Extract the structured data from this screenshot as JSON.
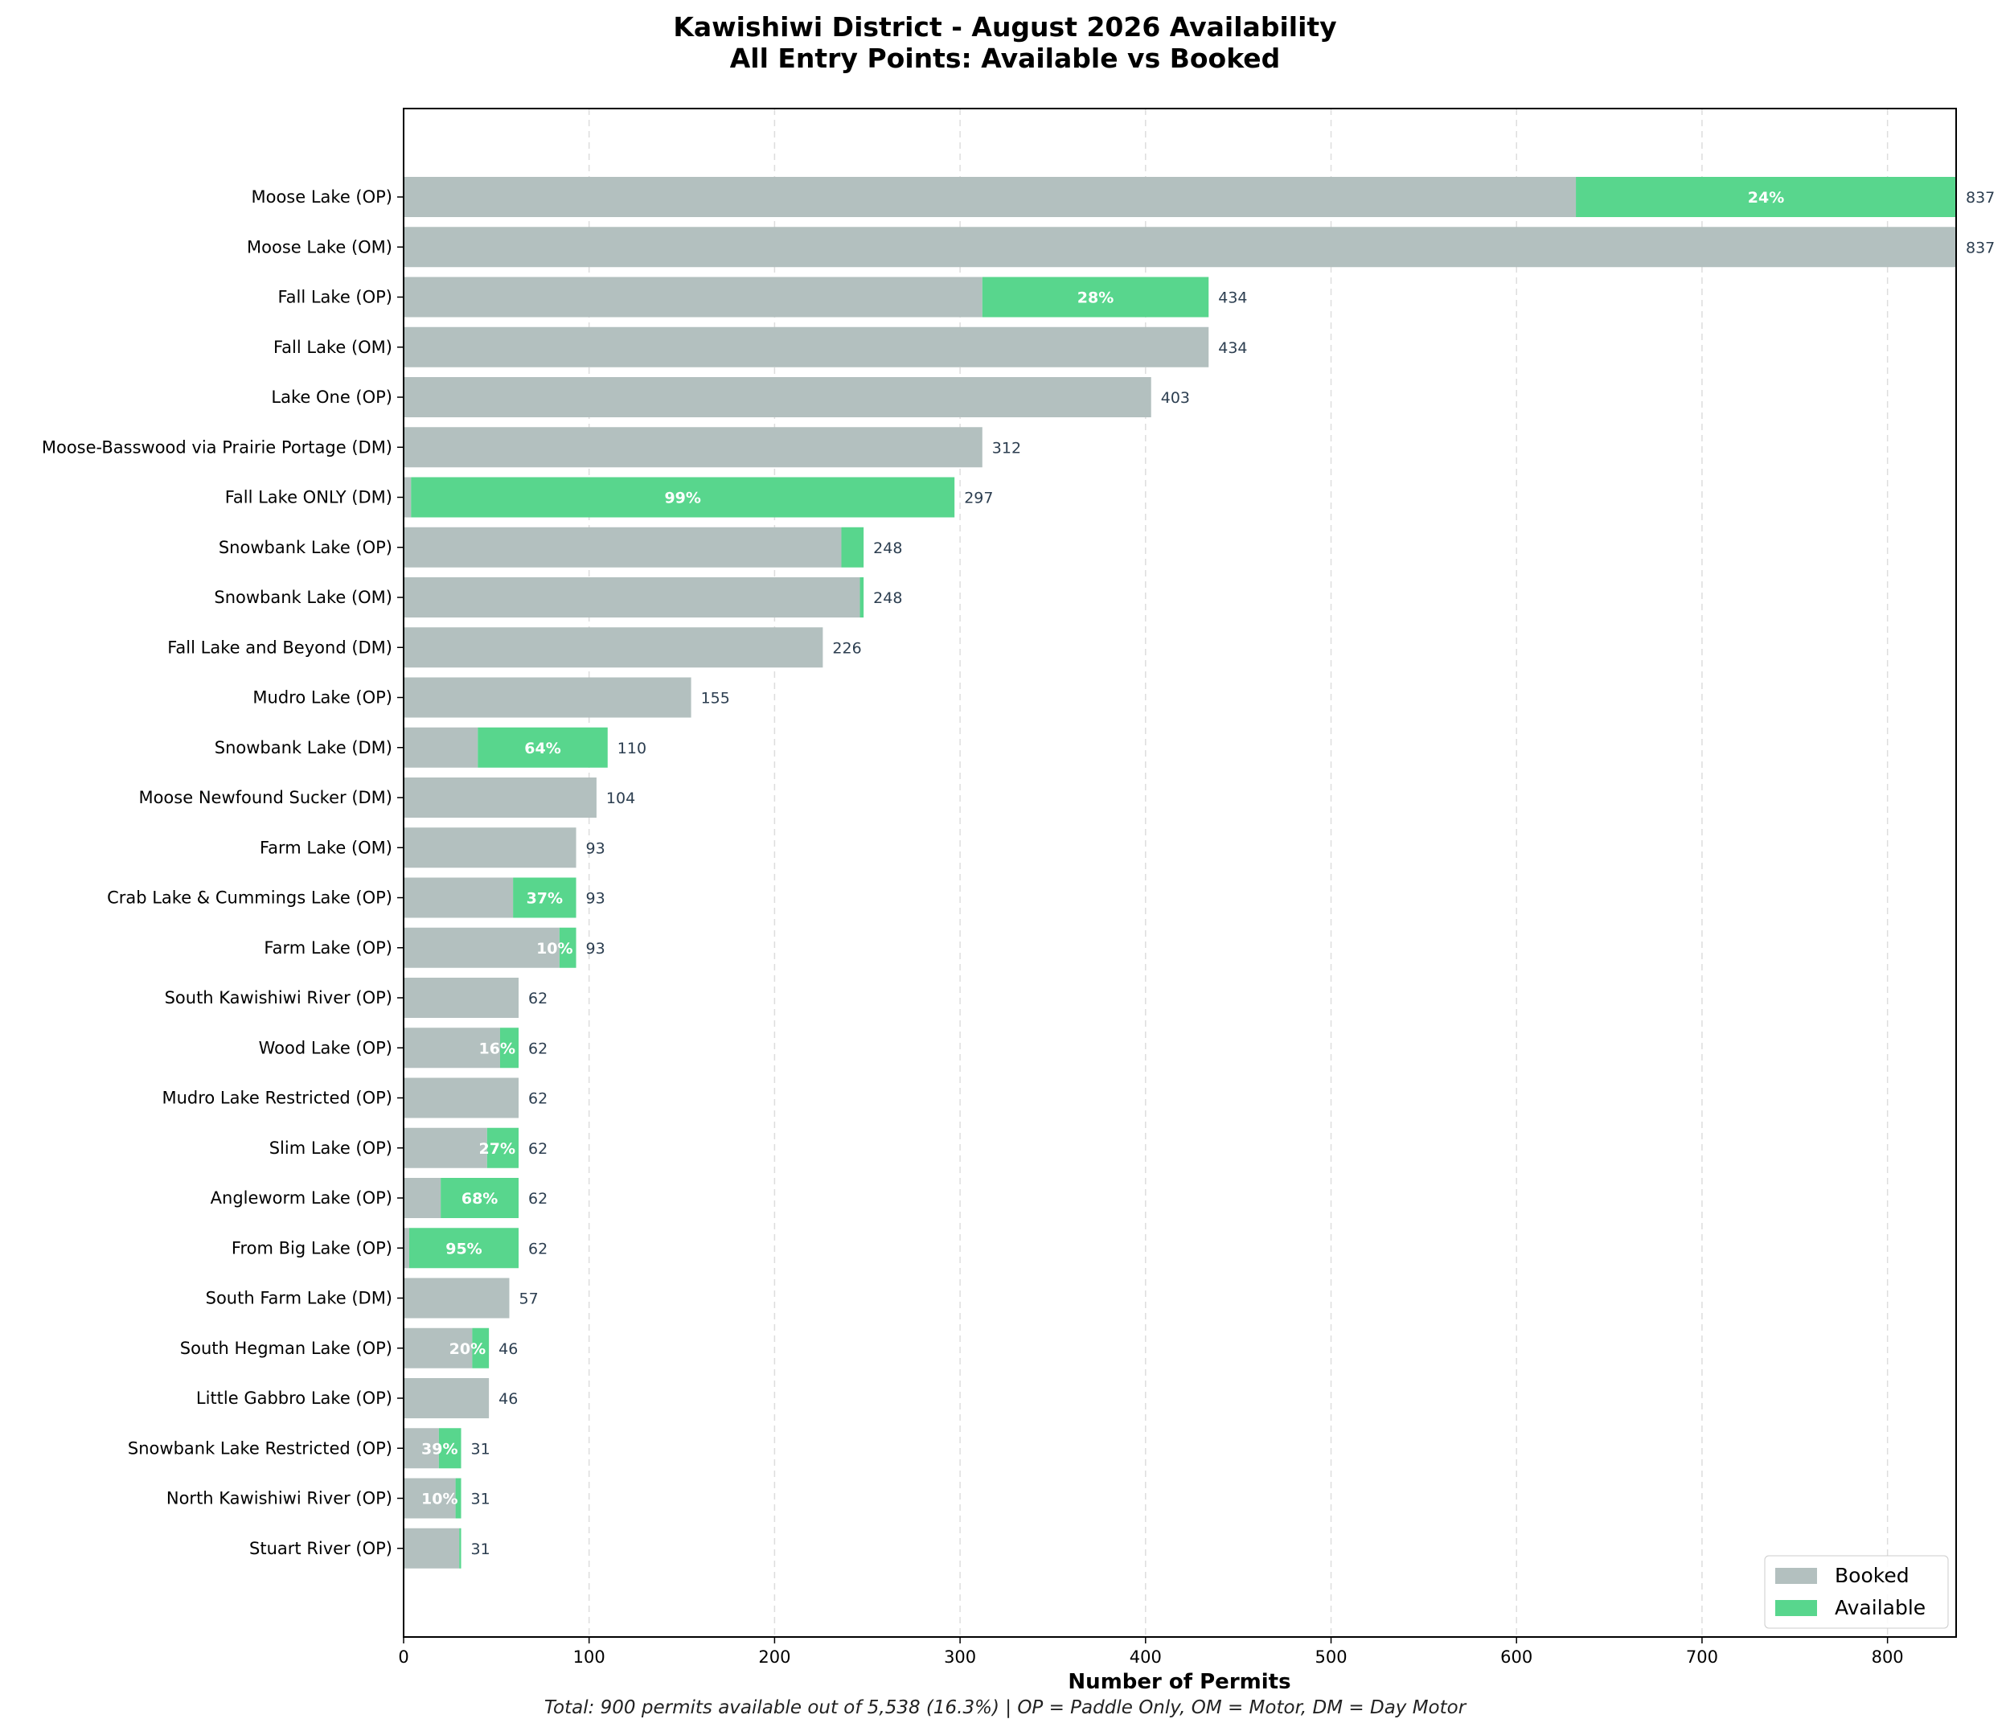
{
  "colors": {
    "booked": "#b3c0bf",
    "available": "#58d68d",
    "value_label": "#2c3e50"
  },
  "chart_data": {
    "type": "bar",
    "orientation": "horizontal",
    "stacked": true,
    "title": "Kawishiwi District - August 2026 Availability",
    "subtitle": "All Entry Points: Available vs Booked",
    "xlabel": "Number of Permits",
    "ylabel": "",
    "xlim": [
      0,
      837
    ],
    "xticks": [
      0,
      100,
      200,
      300,
      400,
      500,
      600,
      700,
      800
    ],
    "grid": "x dashed",
    "legend": {
      "position": "bottom-right",
      "entries": [
        "Booked",
        "Available"
      ]
    },
    "footnote": "Total: 900 permits available out of 5,538 (16.3%) | OP = Paddle Only, OM = Motor, DM = Day Motor",
    "categories": [
      "Moose Lake (OP)",
      "Moose Lake (OM)",
      "Fall Lake (OP)",
      "Fall Lake (OM)",
      "Lake One (OP)",
      "Moose-Basswood via Prairie Portage (DM)",
      "Fall Lake ONLY (DM)",
      "Snowbank Lake (OP)",
      "Snowbank Lake (OM)",
      "Fall Lake and Beyond (DM)",
      "Mudro Lake (OP)",
      "Snowbank Lake (DM)",
      "Moose Newfound Sucker (DM)",
      "Farm Lake (OM)",
      "Crab Lake & Cummings Lake (OP)",
      "Farm Lake (OP)",
      "South Kawishiwi River (OP)",
      "Wood Lake (OP)",
      "Mudro Lake Restricted (OP)",
      "Slim Lake (OP)",
      "Angleworm Lake (OP)",
      "From Big Lake (OP)",
      "South Farm Lake (DM)",
      "South Hegman Lake (OP)",
      "Little Gabbro Lake (OP)",
      "Snowbank Lake Restricted (OP)",
      "North Kawishiwi River (OP)",
      "Stuart River (OP)"
    ],
    "totals": [
      837,
      837,
      434,
      434,
      403,
      312,
      297,
      248,
      248,
      226,
      155,
      110,
      104,
      93,
      93,
      93,
      62,
      62,
      62,
      62,
      62,
      62,
      57,
      46,
      46,
      31,
      31,
      31
    ],
    "series": [
      {
        "name": "Booked",
        "values": [
          632,
          837,
          312,
          434,
          403,
          312,
          4,
          236,
          246,
          226,
          155,
          40,
          104,
          93,
          59,
          84,
          62,
          52,
          62,
          45,
          20,
          3,
          57,
          37,
          46,
          19,
          28,
          30
        ]
      },
      {
        "name": "Available",
        "values": [
          205,
          0,
          122,
          0,
          0,
          0,
          293,
          12,
          2,
          0,
          0,
          70,
          0,
          0,
          34,
          9,
          0,
          10,
          0,
          17,
          42,
          59,
          0,
          9,
          0,
          12,
          3,
          1
        ]
      }
    ],
    "pct_labels": [
      "24%",
      "",
      "28%",
      "",
      "",
      "",
      "99%",
      "",
      "",
      "",
      "",
      "64%",
      "",
      "",
      "37%",
      "10%",
      "",
      "16%",
      "",
      "27%",
      "68%",
      "95%",
      "",
      "20%",
      "",
      "39%",
      "10%",
      ""
    ]
  }
}
